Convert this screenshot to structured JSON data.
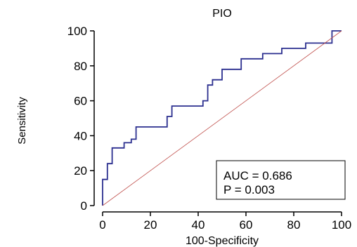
{
  "chart_data": {
    "type": "line",
    "title": "PIO",
    "xlabel": "100-Specificity",
    "ylabel": "Sensitivity",
    "xlim": [
      0,
      100
    ],
    "ylim": [
      0,
      100
    ],
    "xticks": [
      0,
      20,
      40,
      60,
      80,
      100
    ],
    "yticks": [
      0,
      20,
      40,
      60,
      80,
      100
    ],
    "grid": false,
    "series": [
      {
        "color": "#2b2f8f",
        "style": "step",
        "x": [
          0,
          0,
          2,
          2,
          4,
          4,
          9,
          9,
          12,
          12,
          14,
          14,
          27,
          27,
          29,
          29,
          42,
          42,
          44,
          44,
          46,
          46,
          50,
          50,
          58,
          58,
          67,
          67,
          75,
          75,
          85,
          85,
          96,
          96,
          100
        ],
        "y": [
          0,
          15,
          15,
          24,
          24,
          33,
          33,
          36,
          36,
          38,
          38,
          45,
          45,
          51,
          51,
          57,
          57,
          60,
          60,
          69,
          69,
          72,
          72,
          78,
          78,
          84,
          84,
          87,
          87,
          90,
          90,
          93,
          93,
          100,
          100
        ]
      },
      {
        "color": "#c0504d",
        "style": "diagonal",
        "x": [
          0,
          100
        ],
        "y": [
          0,
          100
        ]
      }
    ],
    "annotation": {
      "lines": [
        "AUC = 0.686",
        "P = 0.003"
      ],
      "position": "bottom-right"
    }
  }
}
